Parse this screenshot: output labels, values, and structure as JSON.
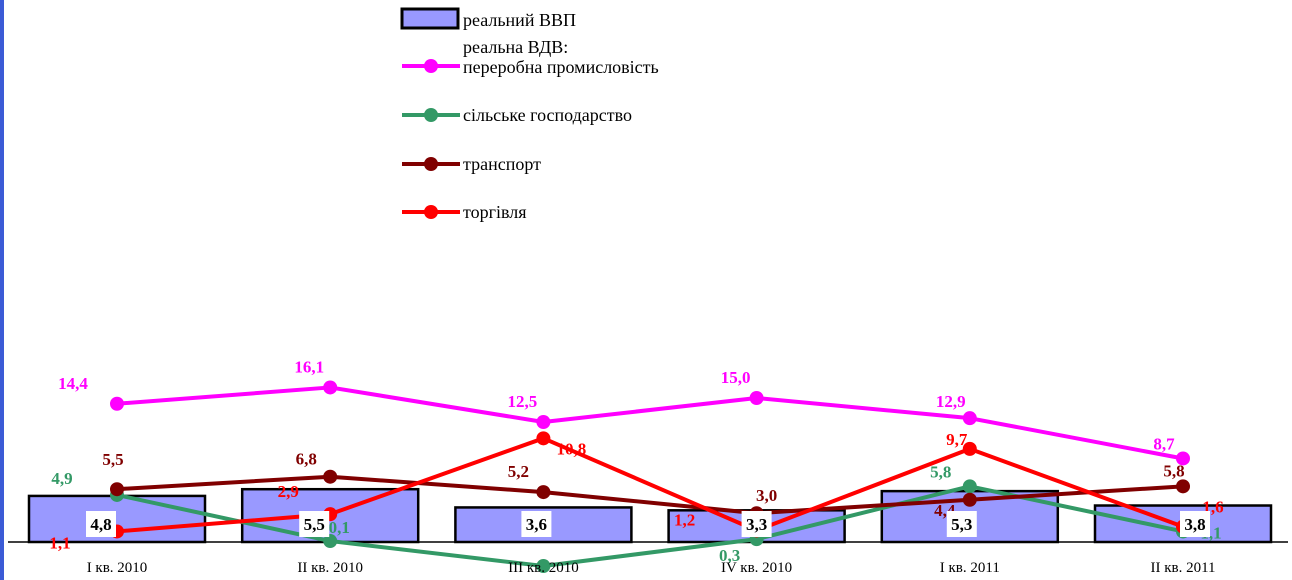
{
  "chart_data": {
    "type": "bar",
    "categories": [
      "I кв. 2010",
      "II кв. 2010",
      "III кв. 2010",
      "IV кв. 2010",
      "I кв. 2011",
      "II кв. 2011"
    ],
    "series": [
      {
        "name": "реальний ВВП",
        "kind": "bar",
        "color": "#9999ff",
        "values": [
          4.8,
          5.5,
          3.6,
          3.3,
          5.3,
          3.8
        ],
        "labels": [
          "4,8",
          "5,5",
          "3,6",
          "3,3",
          "5,3",
          "3,8"
        ]
      },
      {
        "name": "переробна промисловість",
        "kind": "line",
        "color": "#ff00ff",
        "values": [
          14.4,
          16.1,
          12.5,
          15.0,
          12.9,
          8.7
        ],
        "labels": [
          "14,4",
          "16,1",
          "12,5",
          "15,0",
          "12,9",
          "8,7"
        ]
      },
      {
        "name": "сільське господарство",
        "kind": "line",
        "color": "#339966",
        "values": [
          4.9,
          0.1,
          -2.5,
          0.3,
          5.8,
          1.1
        ],
        "labels": [
          "4,9",
          "0,1",
          "",
          "0,3",
          "5,8",
          "1,1"
        ]
      },
      {
        "name": "транспорт",
        "kind": "line",
        "color": "#800000",
        "values": [
          5.5,
          6.8,
          5.2,
          3.0,
          4.4,
          5.8
        ],
        "labels": [
          "5,5",
          "6,8",
          "5,2",
          "3,0",
          "4,4",
          "5,8"
        ]
      },
      {
        "name": "торгівля",
        "kind": "line",
        "color": "#ff0000",
        "values": [
          1.1,
          2.9,
          10.8,
          1.2,
          9.7,
          1.6
        ],
        "labels": [
          "1,1",
          "2,9",
          "10,8",
          "1,2",
          "9,7",
          "1,6"
        ]
      }
    ],
    "legend": {
      "position": "top-center",
      "items": [
        "реальний ВВП",
        "реальна ВДВ:",
        "переробна промисловість",
        "сільське господарство",
        "транспорт",
        "торгівля"
      ]
    },
    "grid": false
  }
}
